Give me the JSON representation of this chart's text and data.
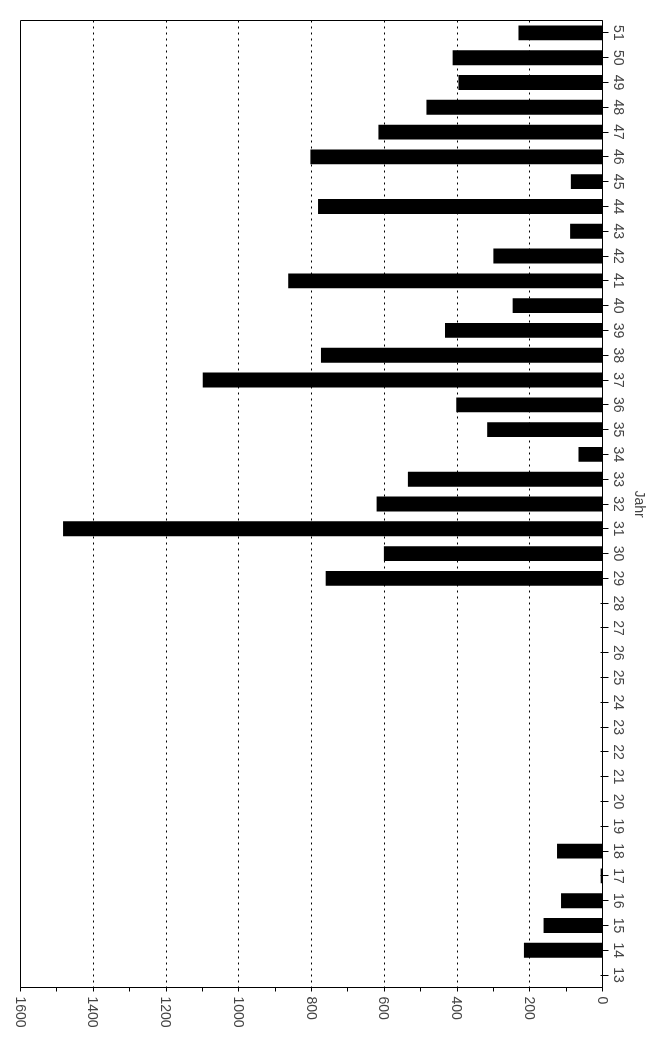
{
  "chart_data": {
    "type": "bar",
    "orientation": "horizontal",
    "ylabel": "Jahr",
    "categories": [
      "51",
      "50",
      "49",
      "48",
      "47",
      "46",
      "45",
      "44",
      "43",
      "42",
      "41",
      "40",
      "39",
      "38",
      "37",
      "36",
      "35",
      "34",
      "33",
      "32",
      "31",
      "30",
      "29",
      "28",
      "27",
      "26",
      "25",
      "24",
      "23",
      "22",
      "21",
      "20",
      "19",
      "18",
      "17",
      "16",
      "15",
      "14",
      "13"
    ],
    "values": [
      231,
      412,
      396,
      484,
      616,
      803,
      87,
      782,
      89,
      300,
      864,
      247,
      433,
      774,
      1099,
      402,
      317,
      66,
      535,
      621,
      1483,
      601,
      761,
      0,
      0,
      0,
      0,
      0,
      0,
      0,
      0,
      0,
      0,
      125,
      5,
      114,
      162,
      216,
      0
    ],
    "color": "#000000",
    "xlim": [
      1600,
      0
    ],
    "xticks": [
      0,
      {
        "value": 100,
        "label": null
      },
      200,
      {
        "value": 300,
        "label": null
      },
      400,
      {
        "value": 500,
        "label": null
      },
      600,
      {
        "value": 700,
        "label": null
      },
      800,
      {
        "value": 900,
        "label": null
      },
      1000,
      {
        "value": 1100,
        "label": null
      },
      1200,
      {
        "value": 1300,
        "label": null
      },
      1400,
      {
        "value": 1500,
        "label": null
      },
      1600
    ],
    "grid": "x",
    "line_style": "dotted"
  }
}
